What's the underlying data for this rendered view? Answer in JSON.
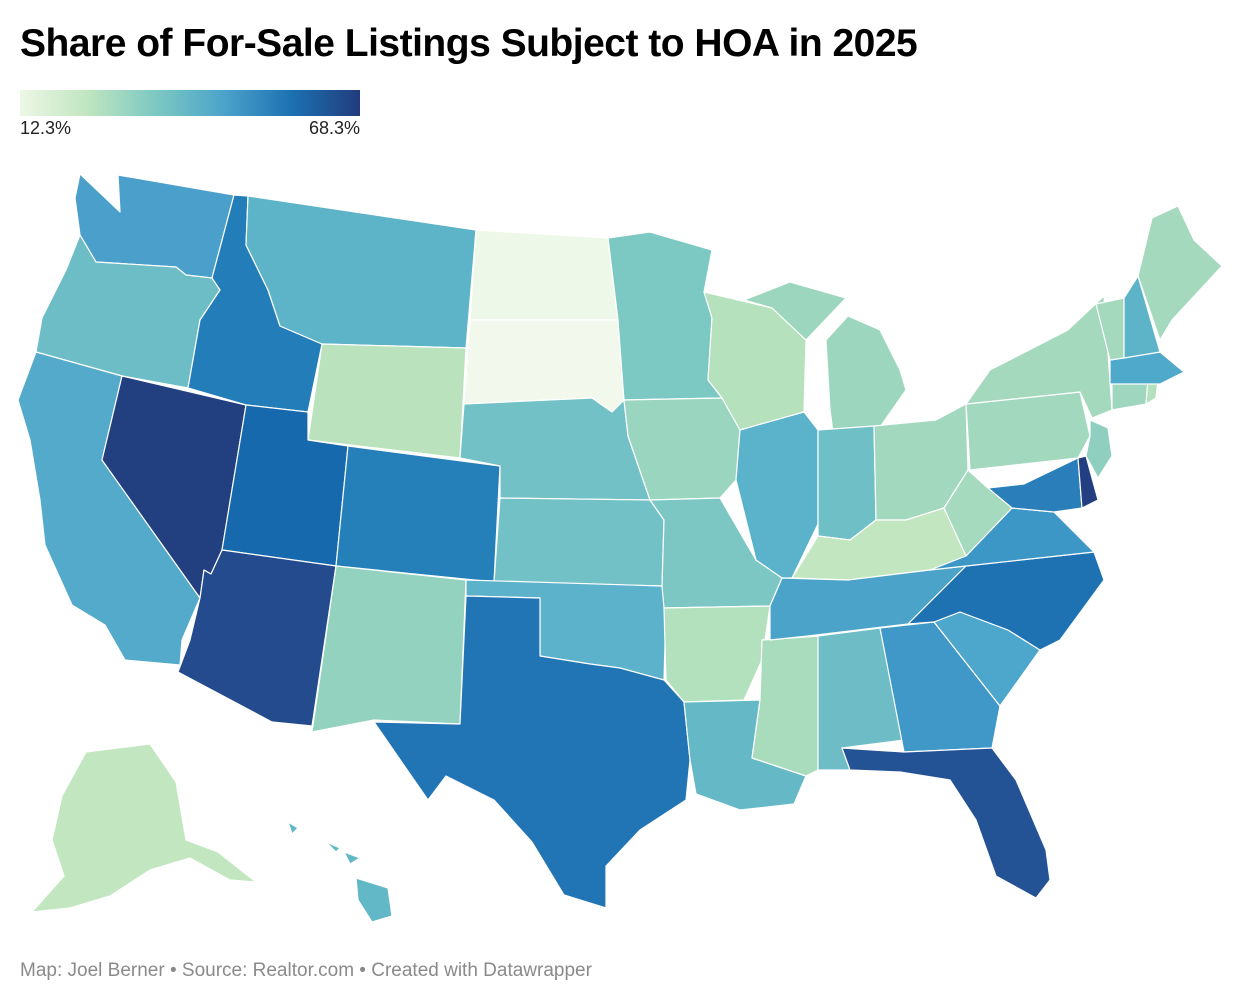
{
  "title": "Share of For-Sale Listings Subject to HOA in 2025",
  "legend": {
    "min_label": "12.3%",
    "max_label": "68.3%",
    "gradient": [
      "#eef7e6",
      "#bfe5c0",
      "#7cc8c2",
      "#4ba3ca",
      "#1c71b1",
      "#223c7d"
    ]
  },
  "footer": "Map: Joel Berner • Source: Realtor.com • Created with Datawrapper",
  "states": {
    "WA": "#4aa0ca",
    "OR": "#6cbdc6",
    "CA": "#53aacb",
    "NV": "#223f80",
    "ID": "#227db9",
    "MT": "#5db3c8",
    "WY": "#b9e2bd",
    "UT": "#1669ad",
    "AZ": "#234b8d",
    "CO": "#2580ba",
    "NM": "#93d2bf",
    "ND": "#eef8e8",
    "SD": "#f2f9ec",
    "NE": "#72c1c7",
    "KS": "#72c1c7",
    "OK": "#5cb1cb",
    "TX": "#2275b4",
    "MN": "#7cc8c2",
    "IA": "#9ad5c0",
    "MO": "#7cc7c3",
    "AR": "#b3e0bd",
    "LA": "#65b9c7",
    "WI": "#b5e1bc",
    "IL": "#5ab2cb",
    "MS": "#a9dcbc",
    "MI": "#9dd6bf",
    "IN": "#6ec0c6",
    "KY": "#c2e6bf",
    "TN": "#4ba3ca",
    "AL": "#6ebdc6",
    "OH": "#a1d8be",
    "WV": "#a6dabf",
    "GA": "#3f98c7",
    "FL": "#235295",
    "SC": "#4da6cb",
    "NC": "#1f72b2",
    "VA": "#3d97c6",
    "PA": "#a1d8be",
    "NY": "#a5d9be",
    "ME": "#a5d9be",
    "VT": "#a5d9be",
    "NH": "#5db3c8",
    "MA": "#4fa9cb",
    "CT": "#9ed6bf",
    "RI": "#b3e0bd",
    "NJ": "#8fcfc0",
    "DE": "#233f82",
    "MD": "#2a7fba",
    "AK": "#c1e6c0",
    "HI": "#62b8c7"
  }
}
